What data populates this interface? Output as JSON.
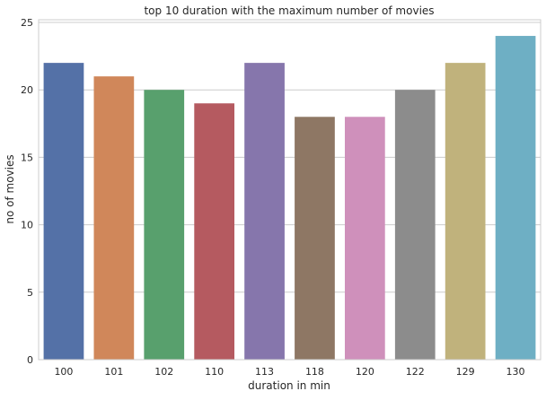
{
  "chart_data": {
    "type": "bar",
    "title": "top 10 duration with the maximum number of movies",
    "xlabel": "duration in min",
    "ylabel": "no of movies",
    "categories": [
      "100",
      "101",
      "102",
      "110",
      "113",
      "118",
      "120",
      "122",
      "129",
      "130"
    ],
    "values": [
      22,
      21,
      20,
      19,
      22,
      18,
      18,
      20,
      22,
      24
    ],
    "ylim": [
      0,
      25.2
    ],
    "yticks": [
      "0",
      "5",
      "10",
      "15",
      "20",
      "25"
    ],
    "grid": "horizontal",
    "legend": "none",
    "colors": [
      "#5471a7",
      "#d0875a",
      "#58a06d",
      "#b55a60",
      "#8676ac",
      "#8e7764",
      "#cf90bb",
      "#8c8c8c",
      "#c0b27c",
      "#6eafc4"
    ],
    "grid_color": "#cccccc",
    "axis_frame_color": "#cccccc"
  }
}
